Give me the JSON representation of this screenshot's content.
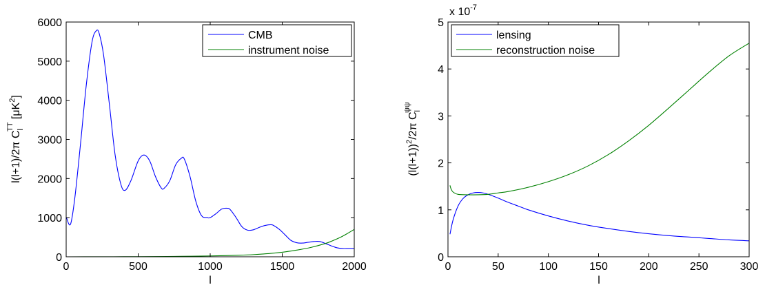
{
  "colors": {
    "blue": "#0000ff",
    "green": "#008000",
    "axis": "#000000",
    "background": "#ffffff"
  },
  "chart_data": [
    {
      "type": "line",
      "xlabel": "l",
      "ylabel": {
        "prefix": "l(l+1)/2π C",
        "sub": "l",
        "sup": "TT",
        "suffix": " [μK",
        "suffix_sup": "2",
        "suffix_end": "]"
      },
      "xlim": [
        0,
        2000
      ],
      "ylim": [
        0,
        6000
      ],
      "xticks": [
        "0",
        "500",
        "1000",
        "1500",
        "2000"
      ],
      "xtick_values": [
        0,
        500,
        1000,
        1500,
        2000
      ],
      "yticks": [
        "0",
        "1000",
        "2000",
        "3000",
        "4000",
        "5000",
        "6000"
      ],
      "ytick_values": [
        0,
        1000,
        2000,
        3000,
        4000,
        5000,
        6000
      ],
      "grid": false,
      "legend_position": "top-right",
      "series": [
        {
          "name": "CMB",
          "color": "#0000ff",
          "x": [
            2,
            30,
            60,
            100,
            140,
            180,
            210,
            230,
            260,
            300,
            340,
            380,
            410,
            450,
            500,
            540,
            580,
            620,
            660,
            680,
            720,
            760,
            800,
            820,
            860,
            900,
            940,
            980,
            1000,
            1040,
            1080,
            1120,
            1140,
            1180,
            1220,
            1260,
            1300,
            1340,
            1380,
            1420,
            1440,
            1480,
            1520,
            1560,
            1600,
            1640,
            1680,
            1720,
            1760,
            1800,
            1840,
            1880,
            1920,
            1960,
            2000
          ],
          "y": [
            1000,
            830,
            1500,
            2900,
            4400,
            5500,
            5780,
            5700,
            5150,
            3900,
            2600,
            1850,
            1700,
            1950,
            2450,
            2600,
            2450,
            2050,
            1760,
            1750,
            1950,
            2350,
            2520,
            2500,
            2050,
            1420,
            1050,
            1000,
            1000,
            1100,
            1220,
            1240,
            1200,
            1000,
            770,
            680,
            690,
            750,
            800,
            820,
            800,
            700,
            560,
            420,
            360,
            350,
            370,
            390,
            390,
            340,
            280,
            230,
            210,
            210,
            210
          ]
        },
        {
          "name": "instrument noise",
          "color": "#008000",
          "x": [
            2,
            200,
            400,
            600,
            800,
            1000,
            1100,
            1200,
            1300,
            1400,
            1500,
            1600,
            1700,
            1800,
            1850,
            1900,
            1950,
            2000
          ],
          "y": [
            0,
            1,
            3,
            6,
            12,
            22,
            30,
            40,
            55,
            80,
            115,
            170,
            240,
            340,
            410,
            490,
            590,
            700
          ]
        }
      ]
    },
    {
      "type": "line",
      "xlabel": "l",
      "ylabel": {
        "prefix": "(l(l+1))",
        "prefix_sup": "2",
        "mid": "/2π C",
        "sub": "l",
        "sup": "ψψ"
      },
      "axis_multiplier": {
        "base": "x 10",
        "exp": "-7"
      },
      "xlim": [
        0,
        300
      ],
      "ylim": [
        0,
        5
      ],
      "xticks": [
        "0",
        "50",
        "100",
        "150",
        "200",
        "250",
        "300"
      ],
      "xtick_values": [
        0,
        50,
        100,
        150,
        200,
        250,
        300
      ],
      "yticks": [
        "0",
        "1",
        "2",
        "3",
        "4",
        "5"
      ],
      "ytick_values": [
        0,
        1,
        2,
        3,
        4,
        5
      ],
      "grid": false,
      "legend_position": "top-left",
      "series": [
        {
          "name": "lensing",
          "color": "#0000ff",
          "x": [
            2,
            5,
            10,
            15,
            20,
            25,
            30,
            35,
            40,
            50,
            60,
            70,
            80,
            100,
            120,
            140,
            160,
            180,
            200,
            220,
            240,
            260,
            280,
            300
          ],
          "y": [
            0.48,
            0.78,
            1.08,
            1.24,
            1.32,
            1.36,
            1.37,
            1.36,
            1.33,
            1.25,
            1.16,
            1.08,
            1.0,
            0.87,
            0.76,
            0.67,
            0.6,
            0.54,
            0.49,
            0.45,
            0.42,
            0.39,
            0.36,
            0.34
          ]
        },
        {
          "name": "reconstruction noise",
          "color": "#008000",
          "x": [
            2,
            3,
            5,
            10,
            20,
            30,
            40,
            50,
            60,
            80,
            100,
            120,
            140,
            160,
            180,
            200,
            220,
            240,
            260,
            280,
            300
          ],
          "y": [
            1.52,
            1.45,
            1.38,
            1.33,
            1.32,
            1.32,
            1.33,
            1.36,
            1.39,
            1.48,
            1.6,
            1.75,
            1.94,
            2.18,
            2.47,
            2.8,
            3.17,
            3.55,
            3.93,
            4.28,
            4.55
          ]
        }
      ]
    }
  ]
}
